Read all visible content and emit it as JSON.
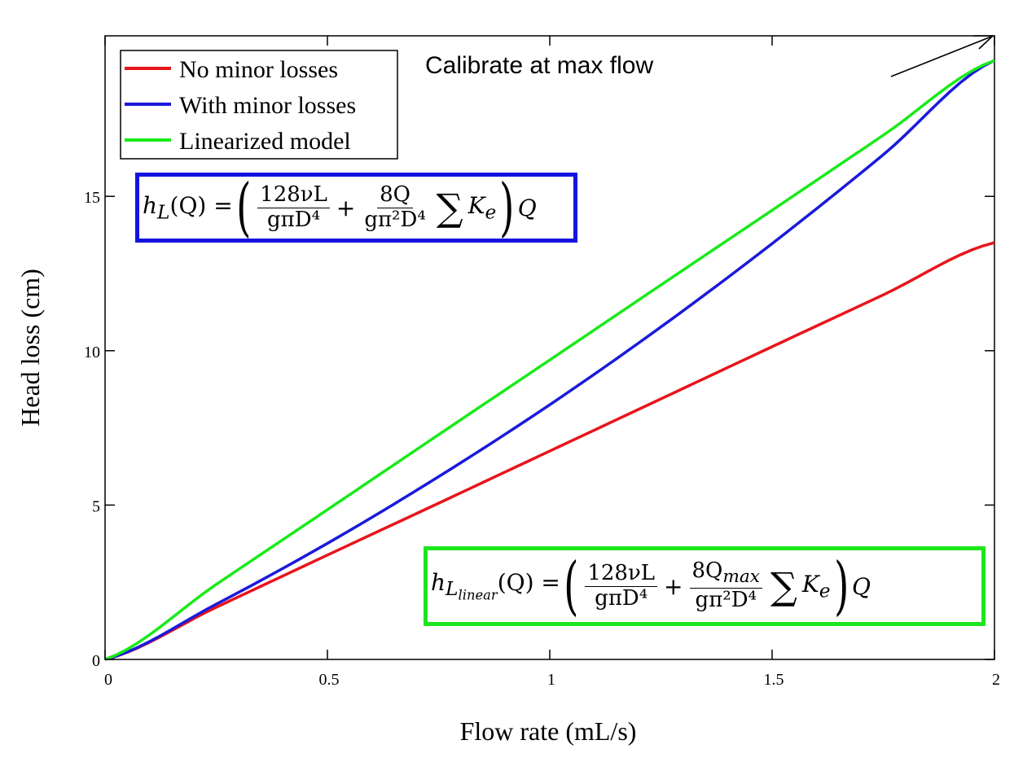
{
  "chart_data": {
    "type": "line",
    "xlabel": "Flow rate (mL/s)",
    "ylabel": "Head loss (cm)",
    "xlim": [
      0,
      2
    ],
    "ylim": [
      0,
      20.2
    ],
    "x_ticks": [
      "0",
      "0.5",
      "1",
      "1.5",
      "2"
    ],
    "y_ticks": [
      "0",
      "5",
      "10",
      "15"
    ],
    "grid": false,
    "legend_position": "top-left",
    "series": [
      {
        "name": "No minor losses",
        "color": "#e8141b",
        "x": [
          0,
          0.25,
          0.5,
          0.75,
          1.0,
          1.25,
          1.5,
          1.75,
          2.0
        ],
        "y": [
          0,
          1.69,
          3.38,
          5.06,
          6.75,
          8.44,
          10.13,
          11.81,
          13.5
        ]
      },
      {
        "name": "With minor losses",
        "color": "#1a1adb",
        "x": [
          0,
          0.25,
          0.5,
          0.75,
          1.0,
          1.25,
          1.5,
          1.75,
          2.0
        ],
        "y": [
          0,
          1.79,
          3.76,
          5.92,
          8.25,
          10.77,
          13.47,
          16.35,
          19.4
        ]
      },
      {
        "name": "Linearized model",
        "color": "#1aea1a",
        "x": [
          0,
          0.25,
          0.5,
          0.75,
          1.0,
          1.25,
          1.5,
          1.75,
          2.0
        ],
        "y": [
          0,
          2.43,
          4.85,
          7.28,
          9.7,
          12.13,
          14.55,
          16.98,
          19.4
        ]
      }
    ],
    "annotations": [
      {
        "text": "Calibrate at max flow"
      }
    ]
  },
  "equations": {
    "nonlinear": {
      "border_color": "#1414e0",
      "lhs": "h",
      "lhs_sub": "L",
      "lhs_arg": "(Q) =",
      "term1_num": "128νL",
      "term1_den": "gπD⁴",
      "plus": "+",
      "term2_num": "8Q",
      "term2_den": "gπ²D⁴",
      "sum": "∑",
      "k": "K",
      "k_sub": "e",
      "tail": "Q"
    },
    "linear": {
      "border_color": "#1ee61e",
      "lhs": "h",
      "lhs_sub": "L",
      "lhs_subsub": "linear",
      "lhs_arg": "(Q) =",
      "term1_num": "128νL",
      "term1_den": "gπD⁴",
      "plus": "+",
      "term2_num": "8Q",
      "term2_num_sub": "max",
      "term2_den": "gπ²D⁴",
      "sum": "∑",
      "k": "K",
      "k_sub": "e",
      "tail": "Q"
    }
  }
}
